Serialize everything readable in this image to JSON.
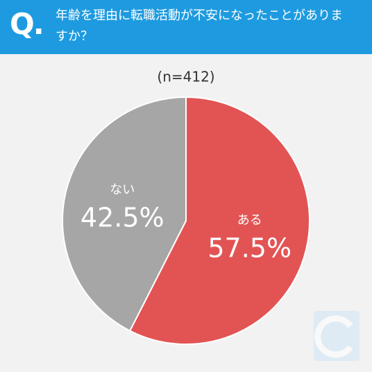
{
  "chart_data": {
    "type": "pie",
    "question_mark": "Q.",
    "title": "年齢を理由に転職活動が不安になったことがありますか？",
    "subtitle": "(n=412)",
    "categories": [
      "ある",
      "ない"
    ],
    "values": [
      57.5,
      42.5
    ],
    "value_labels": [
      "57.5%",
      "42.5%"
    ],
    "colors": [
      "#e25454",
      "#a6a6a6"
    ]
  }
}
